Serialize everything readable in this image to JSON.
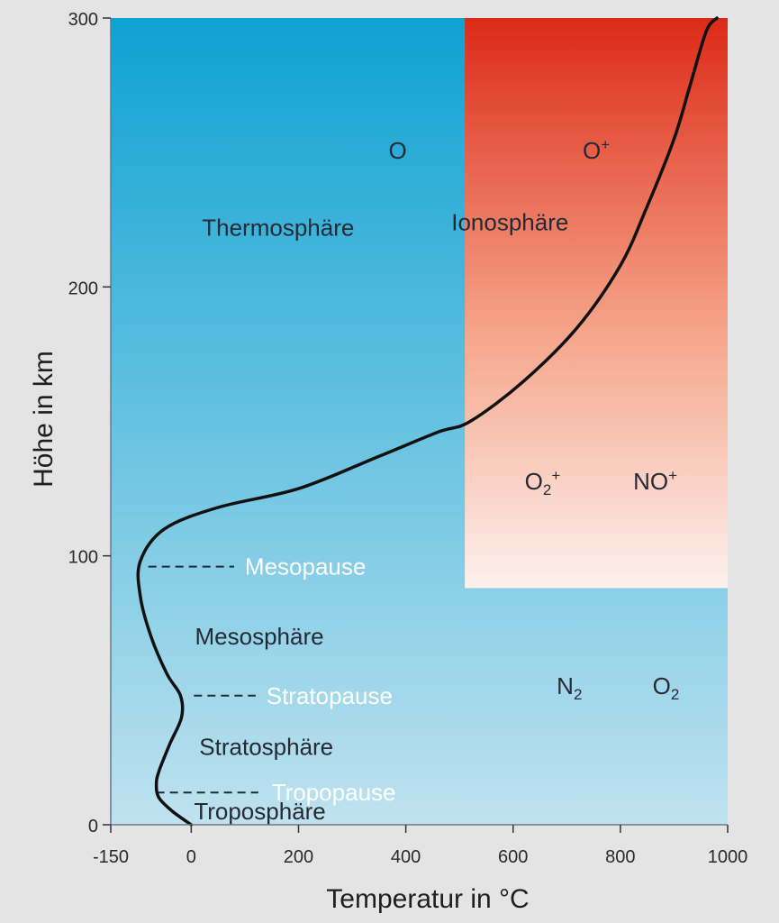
{
  "chart_data": {
    "type": "line",
    "title": "",
    "xlabel": "Temperatur in °C",
    "ylabel": "Höhe in km",
    "xlim": [
      -150,
      1000
    ],
    "ylim": [
      0,
      300
    ],
    "x_ticks": [
      -150,
      0,
      200,
      400,
      600,
      800,
      1000
    ],
    "y_ticks": [
      0,
      100,
      200,
      300
    ],
    "grid": false,
    "series": [
      {
        "name": "",
        "x": [
          0,
          -35,
          -60,
          -65,
          -60,
          -40,
          -18,
          -20,
          -45,
          -75,
          -95,
          -95,
          -50,
          50,
          200,
          350,
          460,
          520,
          620,
          720,
          800,
          850,
          900,
          930,
          960,
          980
        ],
        "y": [
          0,
          5,
          10,
          15,
          20,
          30,
          40,
          48,
          56,
          70,
          85,
          98,
          110,
          118,
          125,
          137,
          146,
          150,
          165,
          185,
          208,
          230,
          255,
          275,
          295,
          300
        ]
      }
    ],
    "ionosphere_region": {
      "x_range": [
        510,
        1000
      ],
      "y_range": [
        88,
        300
      ]
    },
    "boundaries": [
      {
        "name": "Mesopause",
        "label": "Mesopause",
        "altitude": 96,
        "x_range": [
          -80,
          80
        ],
        "label_x": 100
      },
      {
        "name": "Stratopause",
        "label": "Stratopause",
        "altitude": 48,
        "x_range": [
          5,
          120
        ],
        "label_x": 140
      },
      {
        "name": "Tropopause",
        "label": "Tropopause",
        "altitude": 12,
        "x_range": [
          -65,
          125
        ],
        "label_x": 150
      }
    ],
    "region_labels": [
      {
        "key": "thermosphere",
        "text": "Thermosphäre",
        "x": 20,
        "y": 222
      },
      {
        "key": "ionosphere",
        "text": "Ionosphäre",
        "x": 485,
        "y": 224
      },
      {
        "key": "mesosphere",
        "text": "Mesosphäre",
        "x": 7,
        "y": 70
      },
      {
        "key": "stratosphere",
        "text": "Stratosphäre",
        "x": 15,
        "y": 29
      },
      {
        "key": "troposphere",
        "text": "Troposphäre",
        "x": 5,
        "y": 5
      }
    ],
    "species_labels": [
      {
        "key": "o",
        "base": "O",
        "sub": "",
        "sup": "",
        "x": 385,
        "y": 251
      },
      {
        "key": "o-plus",
        "base": "O",
        "sub": "",
        "sup": "+",
        "x": 755,
        "y": 251
      },
      {
        "key": "o2-plus",
        "base": "O",
        "sub": "2",
        "sup": "+",
        "x": 655,
        "y": 128
      },
      {
        "key": "no-plus",
        "base": "NO",
        "sub": "",
        "sup": "+",
        "x": 865,
        "y": 128
      },
      {
        "key": "n2",
        "base": "N",
        "sub": "2",
        "sup": "",
        "x": 705,
        "y": 52
      },
      {
        "key": "o2",
        "base": "O",
        "sub": "2",
        "sup": "",
        "x": 885,
        "y": 52
      }
    ]
  },
  "colors": {
    "background": "#e4e4e4",
    "sky_top": "#0da2d2",
    "sky_bottom": "#bfe2ef",
    "ionosphere_top": "#dc2a18",
    "ionosphere_mid": "#f5a58a",
    "ionosphere_bottom": "#fdf1ee",
    "curve": "#111111",
    "dash": "#1c2c3a"
  }
}
